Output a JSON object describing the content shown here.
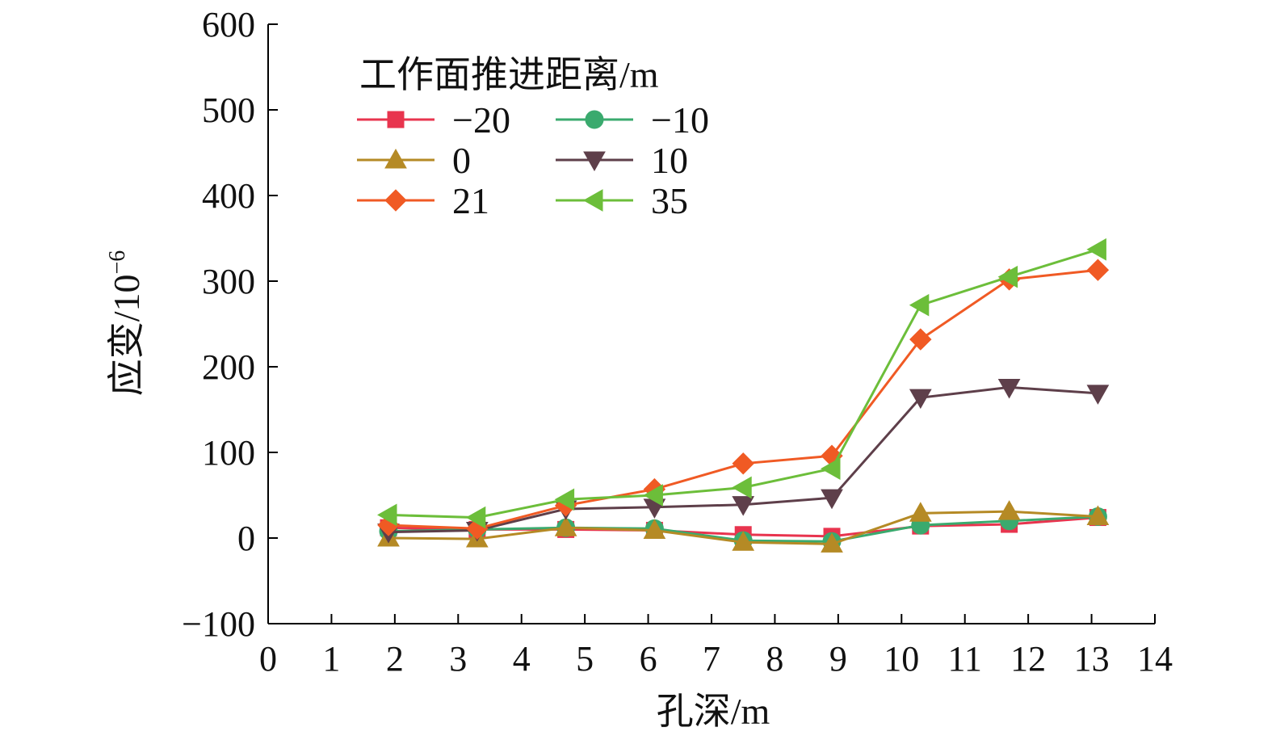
{
  "chart_data": {
    "type": "line",
    "xlabel": "孔深/m",
    "ylabel": "应变/10",
    "ylabel_sup": "−6",
    "xlim": [
      0,
      14
    ],
    "ylim": [
      -100,
      600
    ],
    "x_ticks": [
      "0",
      "1",
      "2",
      "3",
      "4",
      "5",
      "6",
      "7",
      "8",
      "9",
      "10",
      "11",
      "12",
      "13",
      "14"
    ],
    "y_ticks": [
      "600",
      "500",
      "400",
      "300",
      "200",
      "100",
      "0",
      "−100"
    ],
    "grid": false,
    "legend": {
      "title": "工作面推进距离/m",
      "placement": "top-left",
      "columns": 2
    },
    "x": [
      1.9,
      3.3,
      4.7,
      6.1,
      7.5,
      8.9,
      10.3,
      11.7,
      13.1
    ],
    "series": [
      {
        "name": "−20",
        "color": "#e8344e",
        "marker": "square",
        "values": [
          12,
          10,
          10,
          9,
          4,
          2,
          14,
          16,
          24
        ]
      },
      {
        "name": "−10",
        "color": "#3aaa6e",
        "marker": "circle",
        "values": [
          8,
          10,
          12,
          11,
          -3,
          -4,
          15,
          20,
          25
        ]
      },
      {
        "name": "0",
        "color": "#b58a25",
        "marker": "triangle-up",
        "values": [
          0,
          -1,
          12,
          9,
          -5,
          -7,
          29,
          31,
          25
        ]
      },
      {
        "name": "10",
        "color": "#5e3f4a",
        "marker": "triangle-down",
        "values": [
          7,
          9,
          34,
          36,
          39,
          47,
          164,
          176,
          169
        ]
      },
      {
        "name": "21",
        "color": "#f05a24",
        "marker": "diamond",
        "values": [
          15,
          11,
          38,
          57,
          87,
          96,
          232,
          302,
          313
        ]
      },
      {
        "name": "35",
        "color": "#6cbe3a",
        "marker": "triangle-left",
        "values": [
          27,
          24,
          45,
          50,
          59,
          81,
          272,
          305,
          337
        ]
      }
    ]
  }
}
